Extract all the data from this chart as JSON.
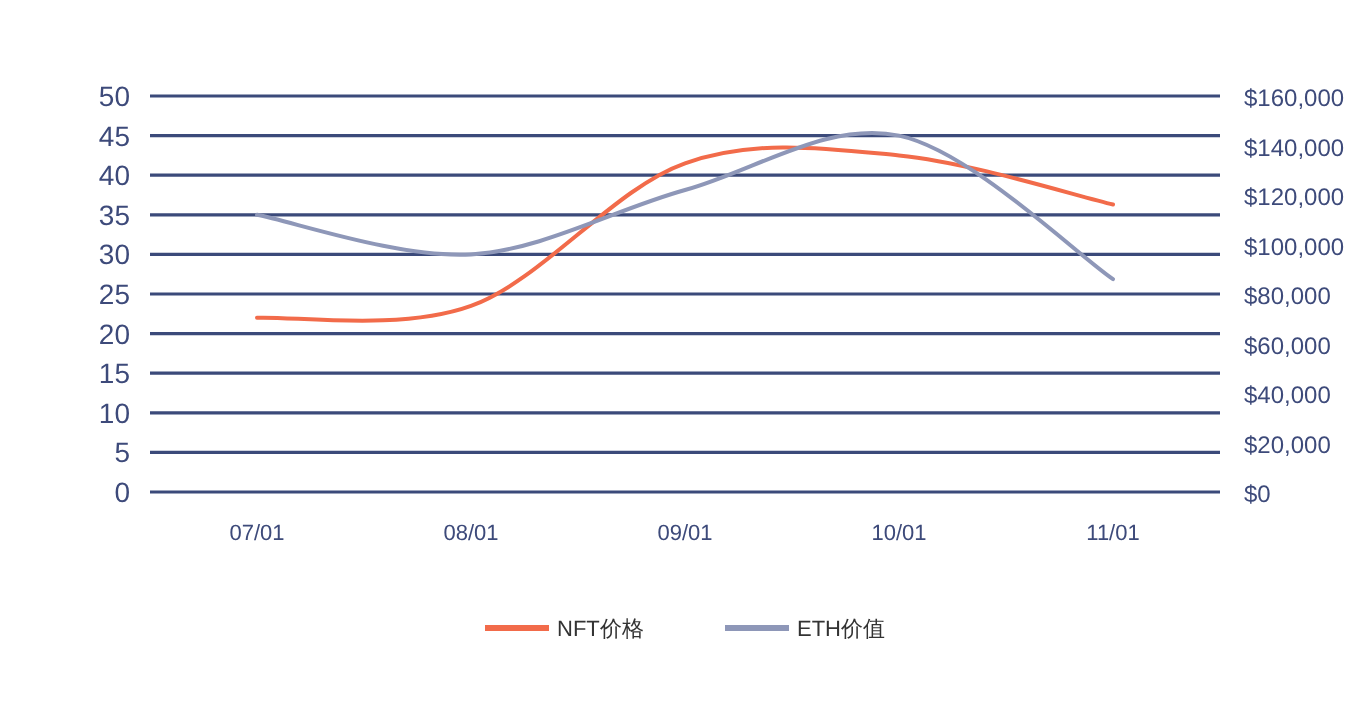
{
  "chart_data": {
    "type": "line",
    "categories": [
      "07/01",
      "08/01",
      "09/01",
      "10/01",
      "11/01"
    ],
    "series": [
      {
        "name": "NFT价格",
        "color": "#f26b4a",
        "values": [
          22,
          23.5,
          41.5,
          42.5,
          36.3
        ]
      },
      {
        "name": "ETH价值",
        "color": "#8e97b8",
        "axis": "y2",
        "values": [
          112000,
          96000,
          122000,
          144000,
          86000
        ]
      }
    ],
    "ylim": [
      0,
      50
    ],
    "yticks": [
      0,
      5,
      10,
      15,
      20,
      25,
      30,
      35,
      40,
      45,
      50
    ],
    "y2lim": [
      0,
      160000
    ],
    "y2ticks": [
      {
        "value": 0,
        "label": "$0"
      },
      {
        "value": 20000,
        "label": "$20,000"
      },
      {
        "value": 40000,
        "label": "$40,000"
      },
      {
        "value": 60000,
        "label": "$60,000"
      },
      {
        "value": 80000,
        "label": "$80,000"
      },
      {
        "value": 100000,
        "label": "$100,000"
      },
      {
        "value": 120000,
        "label": "$120,000"
      },
      {
        "value": 140000,
        "label": "$140,000"
      },
      {
        "value": 160000,
        "label": "$160,000"
      }
    ],
    "grid": "y",
    "legend": "bottom"
  }
}
